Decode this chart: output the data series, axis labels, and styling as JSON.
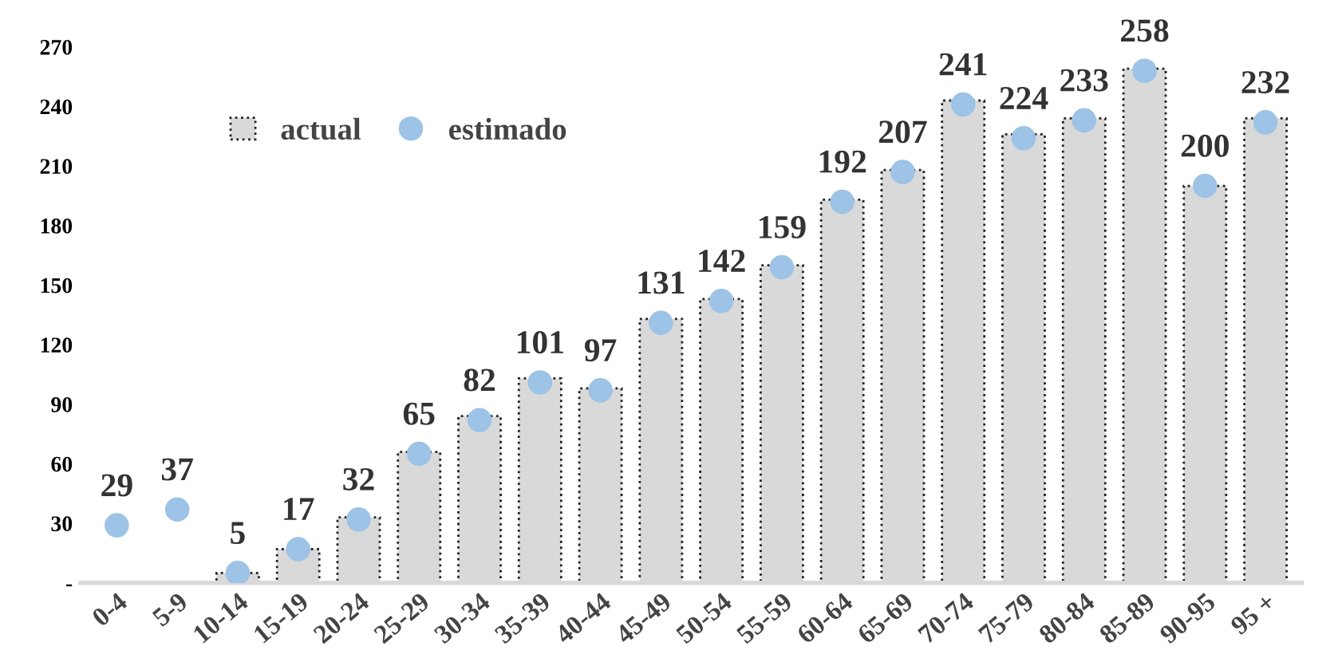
{
  "chart_data": {
    "type": "bar",
    "categories": [
      "0-4",
      "5-9",
      "10-14",
      "15-19",
      "20-24",
      "25-29",
      "30-34",
      "35-39",
      "40-44",
      "45-49",
      "50-54",
      "55-59",
      "60-64",
      "65-69",
      "70-74",
      "75-79",
      "80-84",
      "85-89",
      "90-95",
      "95 +"
    ],
    "series": [
      {
        "name": "actual",
        "color": "#d9d9d9",
        "values": [
          null,
          null,
          5,
          17,
          33,
          66,
          84,
          103,
          98,
          133,
          143,
          160,
          193,
          208,
          243,
          226,
          234,
          259,
          200,
          234
        ]
      },
      {
        "name": "estimado",
        "type": "scatter",
        "color": "#9dc3e6",
        "values": [
          29,
          37,
          5,
          17,
          32,
          65,
          82,
          101,
          97,
          131,
          142,
          159,
          192,
          207,
          241,
          224,
          233,
          258,
          200,
          232
        ],
        "value_labels": [
          "29",
          "37",
          "5",
          "17",
          "32",
          "65",
          "82",
          "101",
          "97",
          "131",
          "142",
          "159",
          "192",
          "207",
          "241",
          "224",
          "233",
          "258",
          "200",
          "232"
        ]
      }
    ],
    "ylim": [
      0,
      270
    ],
    "yticks": [
      {
        "value": 0,
        "label": "-"
      },
      30,
      60,
      90,
      120,
      150,
      180,
      210,
      240,
      270
    ],
    "grid": false,
    "legend": "top left",
    "marker": "circle"
  }
}
